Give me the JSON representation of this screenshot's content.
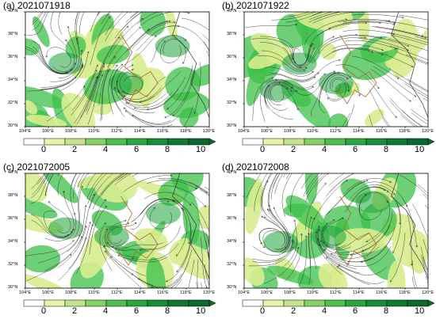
{
  "panels": [
    {
      "title": "(a) 2021071918"
    },
    {
      "title": "(b) 2021071922"
    },
    {
      "title": "(c) 2021072005"
    },
    {
      "title": "(d) 2021072008"
    }
  ],
  "axes": {
    "lat_labels": [
      "40°N",
      "38°N",
      "36°N",
      "34°N",
      "32°N",
      "30°N"
    ],
    "lon_labels": [
      "104°E",
      "106°E",
      "108°E",
      "110°E",
      "112°E",
      "114°E",
      "116°E",
      "118°E",
      "120°E"
    ]
  },
  "colorbar": {
    "tick_labels": [
      "0",
      "2",
      "4",
      "6",
      "8",
      "10"
    ],
    "colors": [
      "#ffffff",
      "#e8f3a8",
      "#c3e48a",
      "#84d166",
      "#4dbf4d",
      "#28a83e",
      "#168f36",
      "#0d7a30",
      "#0a6a2e"
    ]
  },
  "style": {
    "field_green": "#3cc04a",
    "field_light": "#d7ec8e",
    "streamline": "#2a2a2a",
    "province_border": "#b4642a",
    "coast": "#333333"
  }
}
